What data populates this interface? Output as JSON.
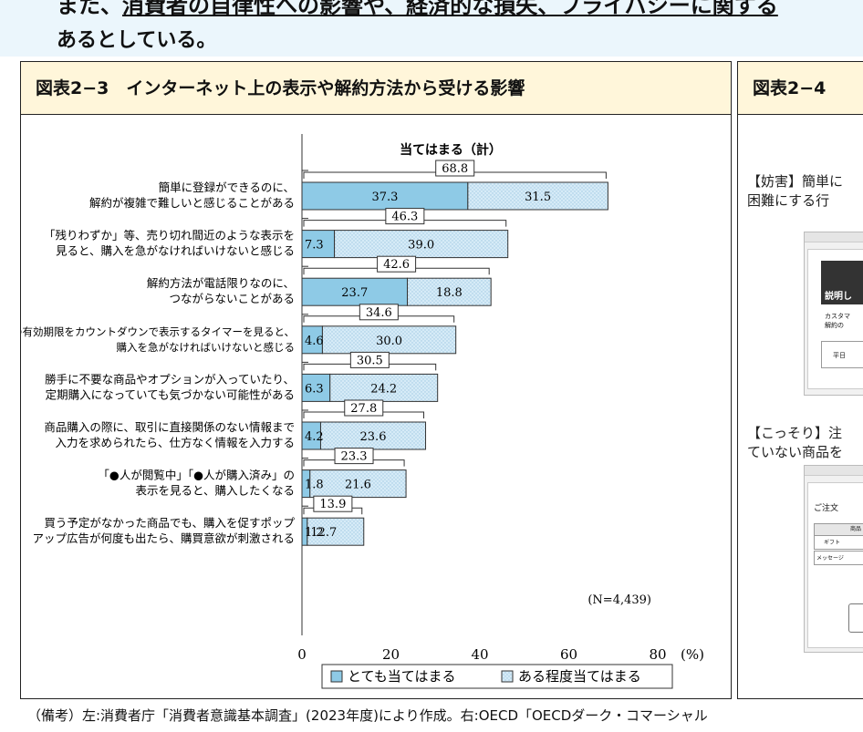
{
  "intro": {
    "line1_prefix": "また、",
    "line1_underlined": "消費者の自律性への影響や、経済的な損失、プライバシーに関する",
    "line2": "あるとしている。"
  },
  "left_panel": {
    "title": "図表2−3　インターネット上の表示や解約方法から受ける影響"
  },
  "right_panel": {
    "title": "図表2−4",
    "text1_line1": "【妨害】簡単に",
    "text1_line2": "困難にする行",
    "mock1_heading": "説明し",
    "mock1_line1": "カスタマ",
    "mock1_line2": "解約の",
    "mock1_line3": "平日",
    "text2_line1": "【こっそり】注",
    "text2_line2": "ていない商品を",
    "mock2_heading": "ご注文",
    "mock2_col": "商品",
    "mock2_row1": "ギフト",
    "mock2_row2": "メッセージ"
  },
  "chart_data": {
    "type": "bar",
    "stacked": true,
    "orientation": "horizontal",
    "total_label_title": "当てはまる（計）",
    "categories": [
      [
        "簡単に登録ができるのに、",
        "解約が複雑で難しいと感じることがある"
      ],
      [
        "「残りわずか」等、売り切れ間近のような表示を",
        "見ると、購入を急がなければいけないと感じる"
      ],
      [
        "解約方法が電話限りなのに、",
        "つながらないことがある"
      ],
      [
        "割引等の有効期限をカウントダウンで表示するタイマーを見ると、",
        "購入を急がなければいけないと感じる"
      ],
      [
        "勝手に不要な商品やオプションが入っていたり、",
        "定期購入になっていても気づかない可能性がある"
      ],
      [
        "商品購入の際に、取引に直接関係のない情報まで",
        "入力を求められたら、仕方なく情報を入力する"
      ],
      [
        "「●人が閲覧中」「●人が購入済み」の",
        "表示を見ると、購入したくなる"
      ],
      [
        "買う予定がなかった商品でも、購入を促すポップ",
        "アップ広告が何度も出たら、購買意欲が刺激される"
      ]
    ],
    "series": [
      {
        "name": "とても当てはまる",
        "values": [
          37.3,
          7.3,
          23.7,
          4.6,
          6.3,
          4.2,
          1.8,
          1.2
        ],
        "labels": [
          "37.3",
          "7.3",
          "23.7",
          "4.6",
          "6.3",
          "4.2",
          "1.8",
          "1.2"
        ]
      },
      {
        "name": "ある程度当てはまる",
        "values": [
          31.5,
          39.0,
          18.8,
          30.0,
          24.2,
          23.6,
          21.6,
          12.7
        ],
        "labels": [
          "31.5",
          "39.0",
          "18.8",
          "30.0",
          "24.2",
          "23.6",
          "21.6",
          "12.7"
        ]
      }
    ],
    "totals": [
      68.8,
      46.3,
      42.6,
      34.6,
      30.5,
      27.8,
      23.3,
      13.9
    ],
    "total_labels": [
      "68.8",
      "46.3",
      "42.6",
      "34.6",
      "30.5",
      "27.8",
      "23.3",
      "13.9"
    ],
    "x_ticks": [
      0,
      20,
      40,
      60,
      80
    ],
    "x_tick_labels": [
      "0",
      "20",
      "40",
      "60",
      "80"
    ],
    "x_unit": "(%)",
    "xlim": [
      0,
      80
    ],
    "n_note": "(N=4,439)",
    "colors": {
      "series1": "#8ecae6",
      "series2": "#d8ecf7",
      "border": "#333333"
    }
  },
  "footnote": "（備考）左:消費者庁「消費者意識基本調査」(2023年度)により作成。右:OECD「OECDダーク・コマーシャル"
}
